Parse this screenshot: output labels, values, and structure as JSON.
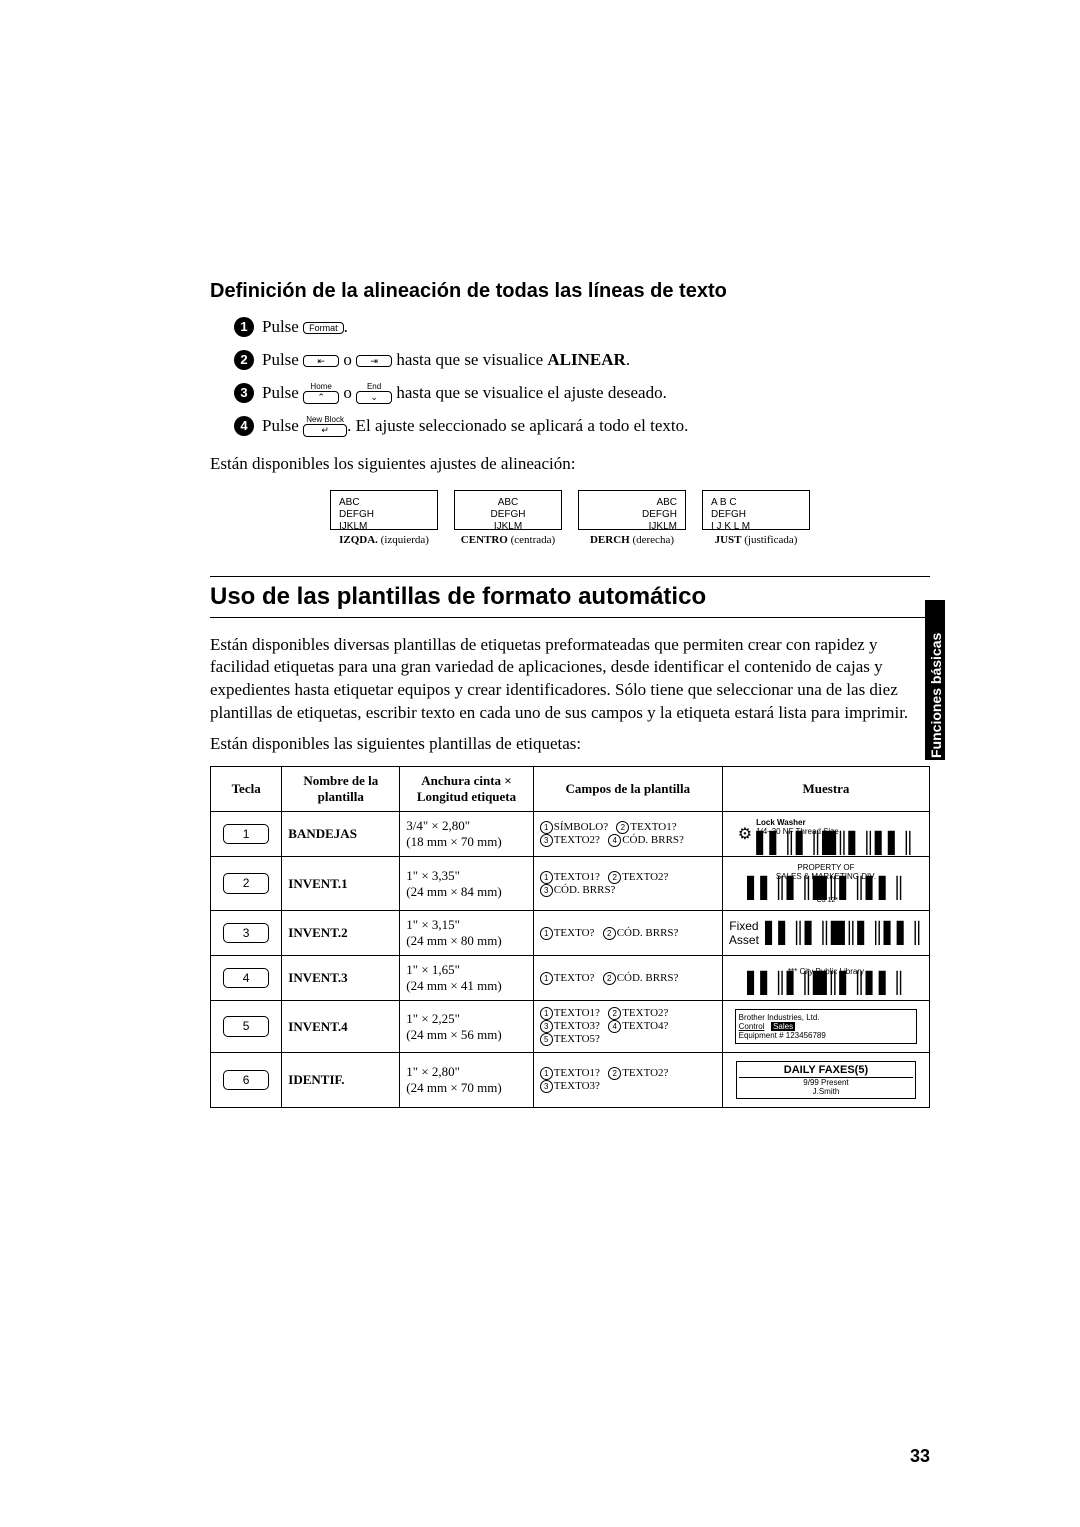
{
  "side_tab": "Funciones básicas",
  "heading1": "Definición de la alineación de todas las líneas de texto",
  "steps": {
    "s1_a": "Pulse ",
    "s1_key": "Format",
    "s1_b": ".",
    "s2_a": "Pulse ",
    "s2_b": " o ",
    "s2_c": " hasta que se visualice ",
    "s2_bold": "ALINEAR",
    "s2_d": ".",
    "s3_a": "Pulse ",
    "s3_b": " o ",
    "s3_c": " hasta que se visualice el ajuste deseado.",
    "s3_labelL": "Home",
    "s3_labelR": "End",
    "s4_a": "Pulse ",
    "s4_b": ". El ajuste seleccionado se aplicará a todo el texto.",
    "s4_label": "New Block"
  },
  "text_after_steps": "Están disponibles los siguientes ajustes de alineación:",
  "align": {
    "t1": "ABC",
    "t2": "DEFGH",
    "t3": "IJKLM",
    "t3_just": "I J K L M",
    "t1_just": "A  B  C",
    "cap1_b": "IZQDA.",
    "cap1": " (izquierda)",
    "cap2_b": "CENTRO",
    "cap2": " (centrada)",
    "cap3_b": "DERCH",
    "cap3": " (derecha)",
    "cap4_b": "JUST",
    "cap4": " (justificada)"
  },
  "heading2": "Uso de las plantillas de formato automático",
  "para1": "Están disponibles diversas plantillas de etiquetas preformateadas que permiten crear con rapidez y facilidad etiquetas para una gran variedad de aplicaciones, desde identificar el contenido de cajas y expedientes hasta etiquetar equipos y crear identificadores. Sólo tiene que seleccionar una de las diez plantillas de etiquetas, escribir texto en cada uno de sus campos y la etiqueta estará lista para imprimir.",
  "para2": "Están disponibles las siguientes plantillas de etiquetas:",
  "table": {
    "hdr_tecla": "Tecla",
    "hdr_nombre": "Nombre de la plantilla",
    "hdr_size": "Anchura cinta × Longitud etiqueta",
    "hdr_campos": "Campos de la plantilla",
    "hdr_muestra": "Muestra",
    "rows": [
      {
        "key": "1",
        "nombre": "BANDEJAS",
        "size1": "3/4\" × 2,80\"",
        "size2": "(18 mm × 70 mm)",
        "campos": [
          [
            "1",
            "SÍMBOLO?"
          ],
          [
            "2",
            "TEXTO1?"
          ],
          [
            "3",
            "TEXTO2?"
          ],
          [
            "4",
            "CÓD.  BRRS?"
          ]
        ],
        "muestra_type": "washer",
        "muestra_t1": "Lock Washer",
        "muestra_t2": "1/4–20 NF Thread Size"
      },
      {
        "key": "2",
        "nombre": "INVENT.1",
        "size1": "1\" × 3,35\"",
        "size2": "(24 mm × 84 mm)",
        "campos": [
          [
            "1",
            "TEXTO1?"
          ],
          [
            "2",
            "TEXTO2?"
          ],
          [
            "3",
            "CÓD. BRRS?"
          ]
        ],
        "muestra_type": "property",
        "muestra_t1": "PROPERTY OF",
        "muestra_t2": "SALES & MARKETING DIV."
      },
      {
        "key": "3",
        "nombre": "INVENT.2",
        "size1": "1\" × 3,15\"",
        "size2": "(24 mm × 80 mm)",
        "campos": [
          [
            "1",
            "TEXTO?"
          ],
          [
            "2",
            "CÓD. BRRS?"
          ]
        ],
        "muestra_type": "fixed",
        "muestra_t1": "Fixed Asset"
      },
      {
        "key": "4",
        "nombre": "INVENT.3",
        "size1": "1\" × 1,65\"",
        "size2": "(24 mm × 41 mm)",
        "campos": [
          [
            "1",
            "TEXTO?"
          ],
          [
            "2",
            "CÓD. BRRS?"
          ]
        ],
        "muestra_type": "library",
        "muestra_t1": "*** City Public Library"
      },
      {
        "key": "5",
        "nombre": "INVENT.4",
        "size1": "1\" × 2,25\"",
        "size2": "(24 mm × 56 mm)",
        "campos": [
          [
            "1",
            "TEXTO1?"
          ],
          [
            "2",
            "TEXTO2?"
          ],
          [
            "3",
            "TEXTO3?"
          ],
          [
            "4",
            "TEXTO4?"
          ],
          [
            "5",
            "TEXTO5?"
          ]
        ],
        "muestra_type": "brother",
        "muestra_t1": "Brother Industries, Ltd.",
        "muestra_t2a": "Control",
        "muestra_t2b": "Sales",
        "muestra_t3": "Equipment # 123456789"
      },
      {
        "key": "6",
        "nombre": "IDENTIF.",
        "size1": "1\" × 2,80\"",
        "size2": "(24 mm × 70 mm)",
        "campos": [
          [
            "1",
            "TEXTO1?"
          ],
          [
            "2",
            "TEXTO2?"
          ],
          [
            "3",
            "TEXTO3?"
          ]
        ],
        "muestra_type": "fax",
        "muestra_t1": "DAILY FAXES(5)",
        "muestra_t2": "9/99 Present",
        "muestra_t3": "J.Smith"
      }
    ]
  },
  "page_num": "33"
}
